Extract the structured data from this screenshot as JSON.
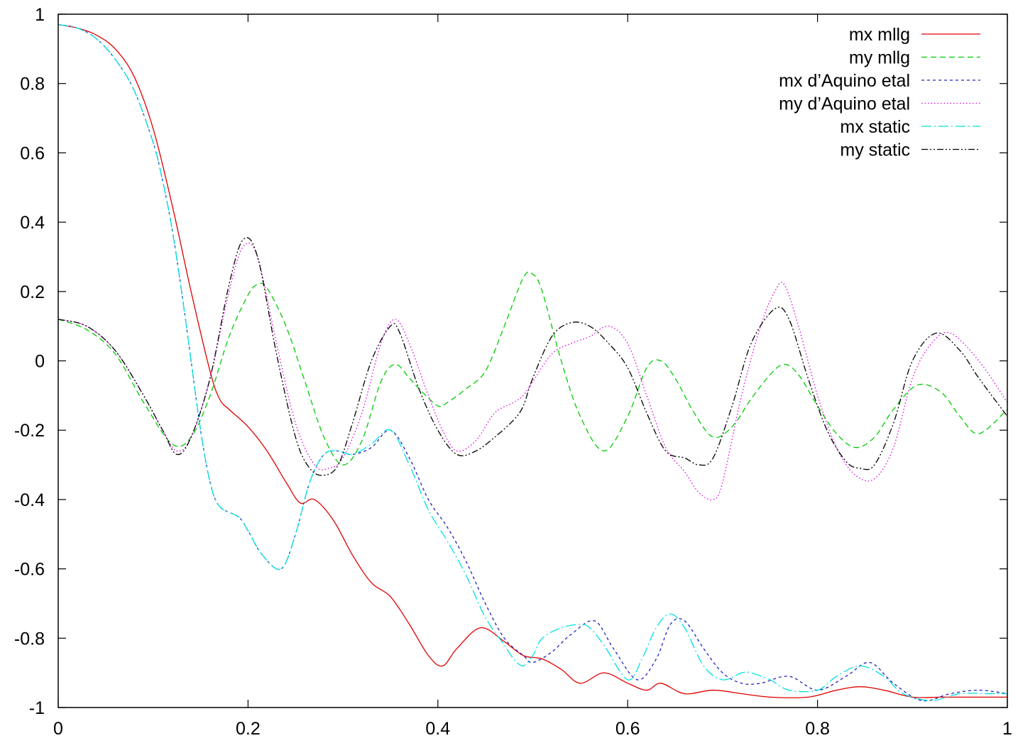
{
  "chart_data": {
    "type": "line",
    "title": "",
    "xlabel": "",
    "ylabel": "",
    "xlim": [
      0,
      1
    ],
    "ylim": [
      -1,
      1
    ],
    "x_ticks": [
      "0",
      "0.2",
      "0.4",
      "0.6",
      "0.8",
      "1"
    ],
    "y_ticks": [
      "1",
      "0.8",
      "0.6",
      "0.4",
      "0.2",
      "0",
      "-0.2",
      "-0.4",
      "-0.6",
      "-0.8",
      "-1"
    ],
    "grid": false,
    "legend_position": "top-right",
    "series": [
      {
        "name": "mx mllg",
        "color": "#e00000",
        "dash": "solid",
        "x": [
          0,
          0.02,
          0.04,
          0.06,
          0.08,
          0.1,
          0.12,
          0.14,
          0.16,
          0.17,
          0.18,
          0.2,
          0.22,
          0.24,
          0.255,
          0.27,
          0.29,
          0.31,
          0.33,
          0.35,
          0.37,
          0.39,
          0.405,
          0.42,
          0.445,
          0.47,
          0.49,
          0.51,
          0.53,
          0.55,
          0.575,
          0.6,
          0.62,
          0.635,
          0.66,
          0.69,
          0.72,
          0.75,
          0.79,
          0.82,
          0.845,
          0.87,
          0.9,
          0.93,
          0.96,
          1.0
        ],
        "y": [
          0.97,
          0.96,
          0.94,
          0.9,
          0.82,
          0.67,
          0.45,
          0.2,
          -0.03,
          -0.11,
          -0.14,
          -0.19,
          -0.26,
          -0.35,
          -0.41,
          -0.4,
          -0.46,
          -0.56,
          -0.64,
          -0.68,
          -0.76,
          -0.85,
          -0.88,
          -0.83,
          -0.77,
          -0.81,
          -0.85,
          -0.86,
          -0.89,
          -0.93,
          -0.9,
          -0.93,
          -0.95,
          -0.93,
          -0.96,
          -0.95,
          -0.96,
          -0.97,
          -0.97,
          -0.95,
          -0.94,
          -0.95,
          -0.97,
          -0.97,
          -0.97,
          -0.97
        ]
      },
      {
        "name": "my mllg",
        "color": "#00cc00",
        "dash": "long-dash",
        "x": [
          0,
          0.03,
          0.06,
          0.09,
          0.12,
          0.14,
          0.16,
          0.18,
          0.2,
          0.21,
          0.22,
          0.24,
          0.26,
          0.28,
          0.3,
          0.32,
          0.34,
          0.355,
          0.37,
          0.38,
          0.4,
          0.41,
          0.43,
          0.45,
          0.47,
          0.49,
          0.5,
          0.51,
          0.53,
          0.55,
          0.575,
          0.6,
          0.62,
          0.635,
          0.65,
          0.67,
          0.69,
          0.71,
          0.73,
          0.75,
          0.765,
          0.78,
          0.8,
          0.82,
          0.84,
          0.86,
          0.88,
          0.905,
          0.93,
          0.95,
          0.97,
          1.0
        ],
        "y": [
          0.12,
          0.09,
          0.02,
          -0.12,
          -0.24,
          -0.22,
          -0.1,
          0.07,
          0.19,
          0.22,
          0.21,
          0.1,
          -0.06,
          -0.22,
          -0.3,
          -0.23,
          -0.06,
          -0.01,
          -0.05,
          -0.08,
          -0.13,
          -0.12,
          -0.08,
          -0.03,
          0.1,
          0.24,
          0.25,
          0.2,
          0.0,
          -0.16,
          -0.26,
          -0.16,
          -0.02,
          0.0,
          -0.05,
          -0.15,
          -0.22,
          -0.19,
          -0.11,
          -0.04,
          -0.01,
          -0.04,
          -0.13,
          -0.21,
          -0.25,
          -0.22,
          -0.14,
          -0.07,
          -0.09,
          -0.16,
          -0.21,
          -0.14
        ]
      },
      {
        "name": "mx d’Aquino etal",
        "color": "#2020c0",
        "dash": "dashed",
        "x": [
          0,
          0.02,
          0.04,
          0.06,
          0.08,
          0.1,
          0.11,
          0.12,
          0.13,
          0.14,
          0.15,
          0.16,
          0.17,
          0.19,
          0.2,
          0.215,
          0.235,
          0.25,
          0.265,
          0.28,
          0.295,
          0.31,
          0.33,
          0.35,
          0.37,
          0.39,
          0.41,
          0.43,
          0.45,
          0.47,
          0.49,
          0.5,
          0.52,
          0.54,
          0.565,
          0.585,
          0.61,
          0.63,
          0.645,
          0.66,
          0.68,
          0.7,
          0.72,
          0.74,
          0.77,
          0.8,
          0.83,
          0.855,
          0.88,
          0.91,
          0.94,
          0.97,
          1.0
        ],
        "y": [
          0.97,
          0.96,
          0.93,
          0.87,
          0.78,
          0.63,
          0.52,
          0.38,
          0.2,
          0.0,
          -0.2,
          -0.35,
          -0.42,
          -0.45,
          -0.49,
          -0.56,
          -0.6,
          -0.5,
          -0.35,
          -0.27,
          -0.26,
          -0.27,
          -0.25,
          -0.2,
          -0.28,
          -0.4,
          -0.48,
          -0.58,
          -0.7,
          -0.8,
          -0.85,
          -0.87,
          -0.84,
          -0.79,
          -0.75,
          -0.83,
          -0.92,
          -0.86,
          -0.76,
          -0.75,
          -0.83,
          -0.9,
          -0.93,
          -0.93,
          -0.91,
          -0.95,
          -0.91,
          -0.87,
          -0.93,
          -0.98,
          -0.96,
          -0.95,
          -0.96
        ]
      },
      {
        "name": "my d’Aquino etal",
        "color": "#e000e0",
        "dash": "dotted",
        "x": [
          0,
          0.03,
          0.06,
          0.09,
          0.11,
          0.125,
          0.14,
          0.16,
          0.18,
          0.195,
          0.21,
          0.23,
          0.25,
          0.27,
          0.285,
          0.3,
          0.32,
          0.34,
          0.355,
          0.37,
          0.39,
          0.405,
          0.42,
          0.44,
          0.46,
          0.48,
          0.49,
          0.5,
          0.52,
          0.54,
          0.56,
          0.58,
          0.6,
          0.62,
          0.64,
          0.66,
          0.675,
          0.69,
          0.7,
          0.72,
          0.74,
          0.755,
          0.765,
          0.78,
          0.8,
          0.82,
          0.84,
          0.86,
          0.88,
          0.9,
          0.92,
          0.94,
          0.97,
          1.0
        ],
        "y": [
          0.12,
          0.1,
          0.03,
          -0.1,
          -0.2,
          -0.26,
          -0.22,
          -0.05,
          0.2,
          0.33,
          0.3,
          0.05,
          -0.18,
          -0.3,
          -0.31,
          -0.28,
          -0.15,
          0.05,
          0.12,
          0.05,
          -0.1,
          -0.2,
          -0.26,
          -0.23,
          -0.15,
          -0.12,
          -0.1,
          -0.06,
          0.02,
          0.05,
          0.07,
          0.1,
          0.05,
          -0.1,
          -0.25,
          -0.32,
          -0.38,
          -0.4,
          -0.35,
          -0.1,
          0.1,
          0.2,
          0.22,
          0.1,
          -0.1,
          -0.25,
          -0.33,
          -0.34,
          -0.25,
          -0.05,
          0.05,
          0.08,
          0.0,
          -0.12
        ]
      },
      {
        "name": "mx static",
        "color": "#00e0e0",
        "dash": "dash-dot",
        "x": [
          0,
          0.02,
          0.04,
          0.06,
          0.08,
          0.1,
          0.11,
          0.12,
          0.13,
          0.14,
          0.15,
          0.16,
          0.17,
          0.19,
          0.2,
          0.215,
          0.235,
          0.25,
          0.265,
          0.28,
          0.295,
          0.31,
          0.33,
          0.35,
          0.37,
          0.39,
          0.41,
          0.43,
          0.45,
          0.47,
          0.48,
          0.49,
          0.5,
          0.51,
          0.53,
          0.55,
          0.56,
          0.575,
          0.6,
          0.615,
          0.63,
          0.645,
          0.66,
          0.68,
          0.7,
          0.72,
          0.73,
          0.75,
          0.77,
          0.8,
          0.82,
          0.845,
          0.87,
          0.89,
          0.92,
          0.95,
          0.98,
          1.0
        ],
        "y": [
          0.97,
          0.96,
          0.93,
          0.87,
          0.78,
          0.63,
          0.52,
          0.38,
          0.2,
          0.0,
          -0.2,
          -0.35,
          -0.42,
          -0.45,
          -0.49,
          -0.56,
          -0.6,
          -0.5,
          -0.35,
          -0.27,
          -0.26,
          -0.27,
          -0.24,
          -0.2,
          -0.3,
          -0.43,
          -0.52,
          -0.62,
          -0.74,
          -0.82,
          -0.86,
          -0.88,
          -0.85,
          -0.8,
          -0.77,
          -0.76,
          -0.77,
          -0.82,
          -0.92,
          -0.86,
          -0.77,
          -0.73,
          -0.77,
          -0.88,
          -0.92,
          -0.9,
          -0.9,
          -0.92,
          -0.95,
          -0.95,
          -0.91,
          -0.88,
          -0.91,
          -0.96,
          -0.98,
          -0.96,
          -0.96,
          -0.96
        ]
      },
      {
        "name": "my static",
        "color": "#000000",
        "dash": "dash-dot-dot",
        "x": [
          0,
          0.03,
          0.06,
          0.09,
          0.11,
          0.125,
          0.14,
          0.16,
          0.18,
          0.195,
          0.21,
          0.23,
          0.25,
          0.265,
          0.28,
          0.295,
          0.31,
          0.33,
          0.35,
          0.36,
          0.38,
          0.4,
          0.42,
          0.44,
          0.46,
          0.48,
          0.49,
          0.5,
          0.52,
          0.54,
          0.56,
          0.58,
          0.6,
          0.62,
          0.64,
          0.66,
          0.675,
          0.69,
          0.71,
          0.73,
          0.755,
          0.77,
          0.79,
          0.81,
          0.83,
          0.845,
          0.86,
          0.88,
          0.9,
          0.925,
          0.95,
          0.97,
          1.0
        ],
        "y": [
          0.12,
          0.1,
          0.03,
          -0.1,
          -0.2,
          -0.27,
          -0.22,
          -0.05,
          0.22,
          0.35,
          0.3,
          0.02,
          -0.22,
          -0.31,
          -0.33,
          -0.3,
          -0.18,
          0.0,
          0.1,
          0.08,
          -0.08,
          -0.2,
          -0.27,
          -0.26,
          -0.22,
          -0.17,
          -0.13,
          -0.05,
          0.07,
          0.11,
          0.1,
          0.05,
          -0.02,
          -0.15,
          -0.26,
          -0.28,
          -0.3,
          -0.28,
          -0.13,
          0.05,
          0.15,
          0.12,
          -0.05,
          -0.2,
          -0.29,
          -0.31,
          -0.3,
          -0.18,
          0.0,
          0.08,
          0.03,
          -0.05,
          -0.16
        ]
      }
    ]
  }
}
